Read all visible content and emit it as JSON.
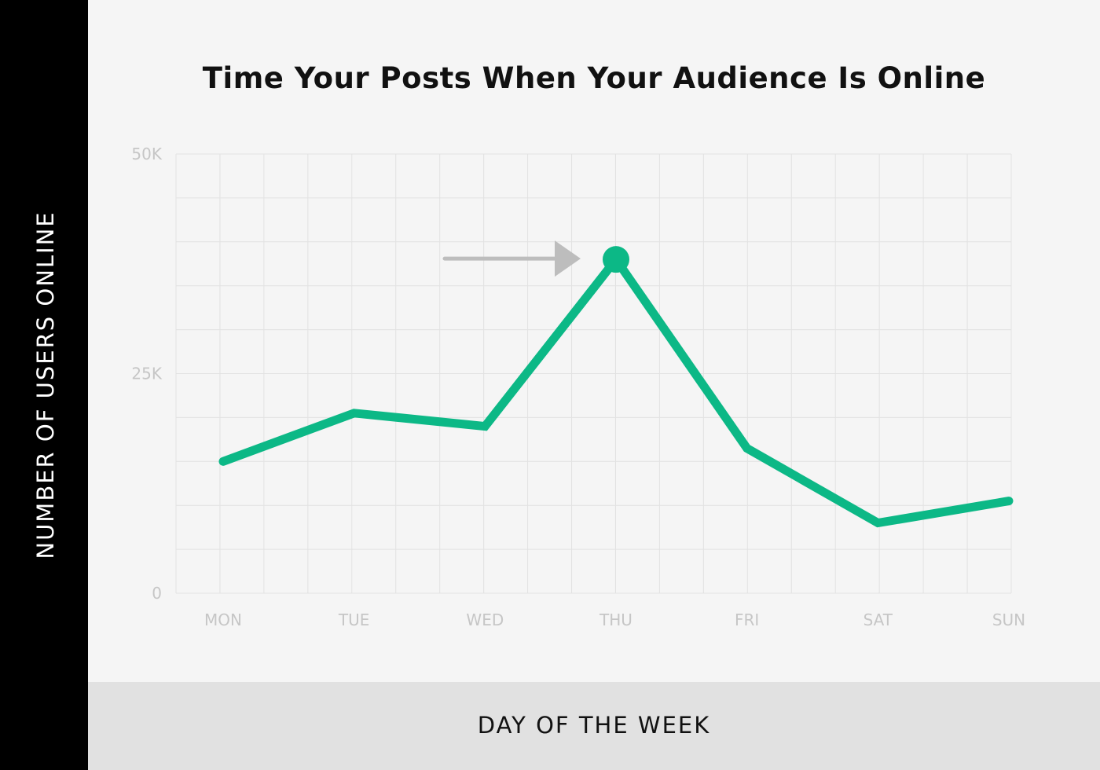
{
  "chart_data": {
    "type": "line",
    "title": "Time Your Posts When Your Audience Is Online",
    "xlabel": "DAY OF THE WEEK",
    "ylabel": "NUMBER OF USERS ONLINE",
    "categories": [
      "MON",
      "TUE",
      "WED",
      "THU",
      "FRI",
      "SAT",
      "SUN"
    ],
    "series": [
      {
        "values": [
          15000,
          20500,
          19000,
          38000,
          16500,
          8000,
          10500
        ]
      }
    ],
    "ylim": [
      0,
      50000
    ],
    "yticks": [
      {
        "value": 0,
        "label": "0"
      },
      {
        "value": 25000,
        "label": "25K"
      },
      {
        "value": 50000,
        "label": "50K"
      }
    ],
    "grid": true,
    "highlight": {
      "category": "THU",
      "marker": "dot with arrow"
    },
    "colors": {
      "line": "#0cb886",
      "grid": "#e2e2e2",
      "arrow": "#bdbdbd",
      "ylabel_band": "#000000",
      "xlabel_band": "#e1e1e1",
      "background": "#f5f5f5"
    }
  }
}
